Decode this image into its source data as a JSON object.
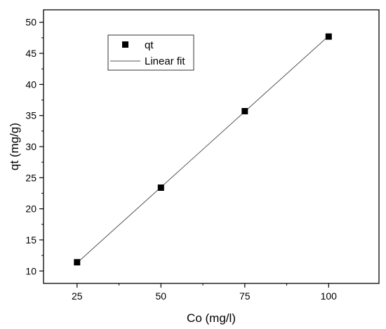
{
  "chart_data": {
    "type": "scatter",
    "xlabel": "Co (mg/l)",
    "ylabel": "qt (mg/g)",
    "xlim": [
      15,
      115
    ],
    "ylim": [
      8,
      52
    ],
    "xticks": [
      25,
      50,
      75,
      100
    ],
    "yticks": [
      10,
      15,
      20,
      25,
      30,
      35,
      40,
      45,
      50
    ],
    "grid": false,
    "legend_position": "top-left",
    "series": [
      {
        "name": "qt",
        "kind": "scatter",
        "marker": "square",
        "color": "#000000",
        "x": [
          25,
          50,
          75,
          100
        ],
        "y": [
          11.4,
          23.4,
          35.7,
          47.7
        ]
      },
      {
        "name": "Linear fit",
        "kind": "line",
        "color": "#555555",
        "x": [
          25,
          100
        ],
        "y": [
          11.3,
          47.8
        ]
      }
    ]
  }
}
